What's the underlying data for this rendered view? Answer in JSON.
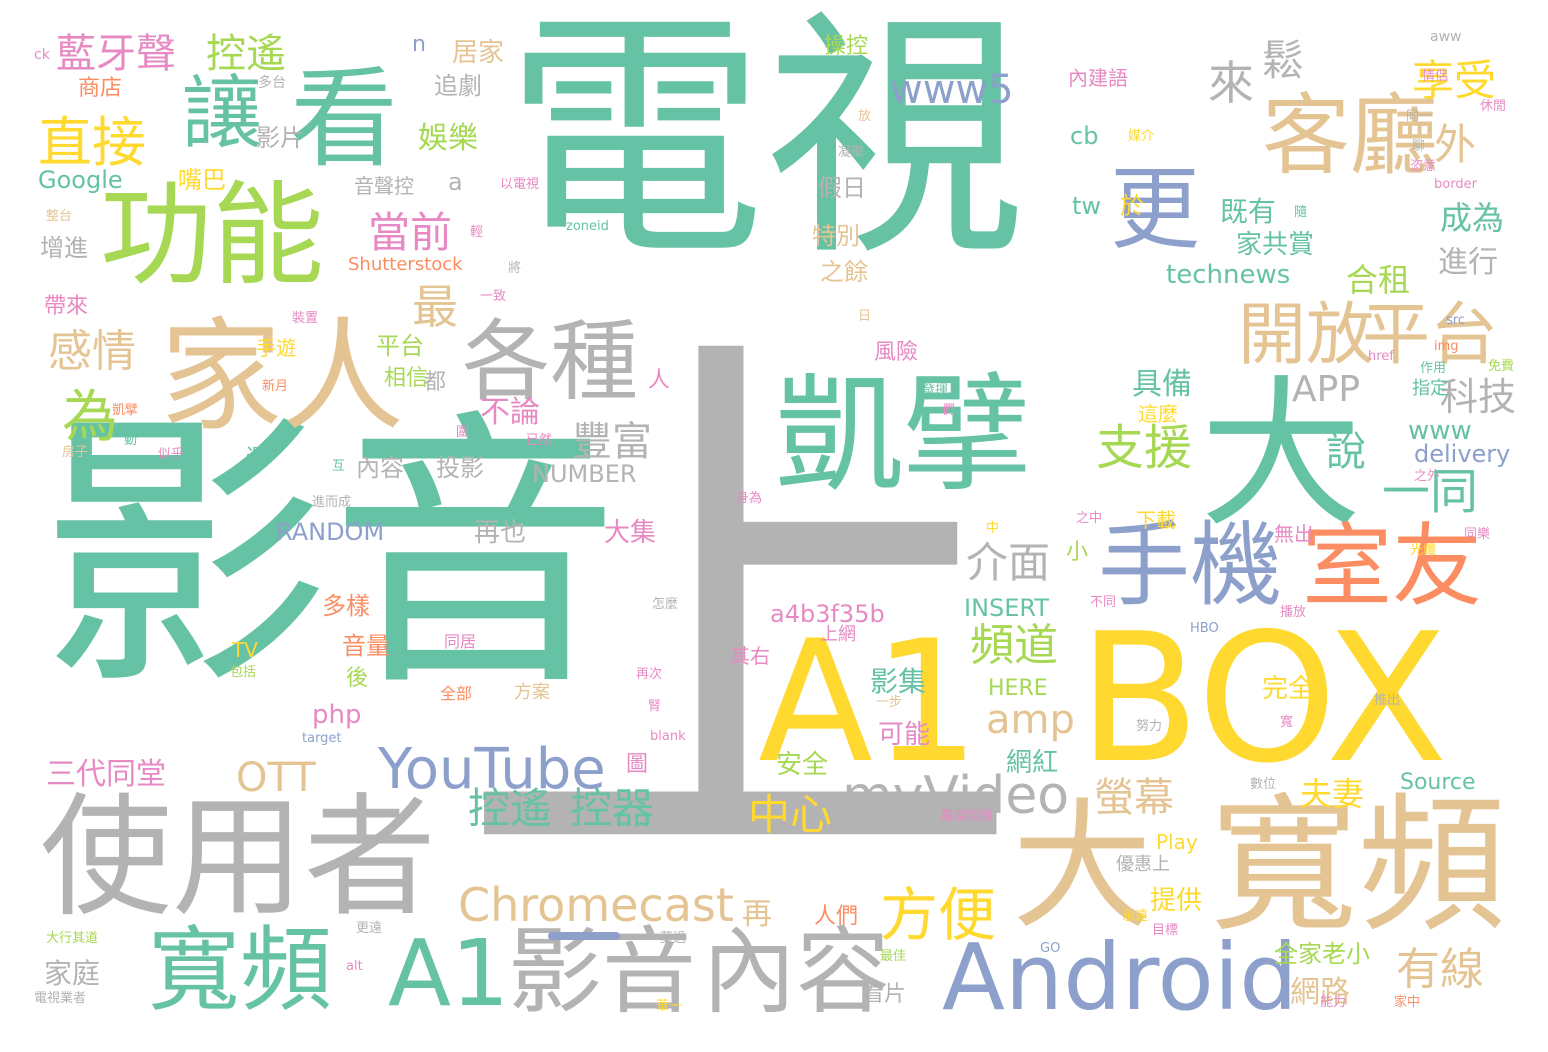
{
  "palette": {
    "teal": "#66c2a5",
    "gold": "#ffd92f",
    "gray": "#b3b3b3",
    "tan": "#e5c494",
    "blue": "#8da0cb",
    "orange": "#fc8d62",
    "pink": "#e78ac3",
    "lime": "#a6d854"
  },
  "words": [
    {
      "text": "電視",
      "color": "teal"
    },
    {
      "text": "影音",
      "color": "teal"
    },
    {
      "text": "上",
      "color": "gray"
    },
    {
      "text": "A1",
      "color": "gold"
    },
    {
      "text": "BOX",
      "color": "gold"
    },
    {
      "text": "凱擘",
      "color": "teal"
    },
    {
      "text": "大",
      "color": "teal"
    },
    {
      "text": "寬頻",
      "color": "tan"
    },
    {
      "text": "大",
      "color": "tan"
    },
    {
      "text": "使用者",
      "color": "gray"
    },
    {
      "text": "寬頻",
      "color": "teal"
    },
    {
      "text": "A1",
      "color": "teal"
    },
    {
      "text": "影音",
      "color": "gray"
    },
    {
      "text": "內容",
      "color": "gray"
    },
    {
      "text": "Android",
      "color": "blue"
    },
    {
      "text": "功能",
      "color": "lime"
    },
    {
      "text": "家人",
      "color": "tan"
    },
    {
      "text": "看",
      "color": "teal"
    },
    {
      "text": "讓",
      "color": "teal"
    },
    {
      "text": "客廳",
      "color": "tan"
    },
    {
      "text": "更",
      "color": "blue"
    },
    {
      "text": "各種",
      "color": "gray"
    },
    {
      "text": "手機",
      "color": "blue"
    },
    {
      "text": "室友",
      "color": "orange"
    },
    {
      "text": "開放",
      "color": "tan"
    },
    {
      "text": "平台",
      "color": "tan"
    },
    {
      "text": "YouTube",
      "color": "blue"
    },
    {
      "text": "Chromecast",
      "color": "tan"
    },
    {
      "text": "方便",
      "color": "gold"
    },
    {
      "text": "myVideo",
      "color": "gray"
    },
    {
      "text": "直接",
      "color": "gold"
    },
    {
      "text": "藍牙聲",
      "color": "pink"
    },
    {
      "text": "控遙",
      "color": "lime"
    },
    {
      "text": "來",
      "color": "gray"
    },
    {
      "text": "鬆",
      "color": "gray"
    },
    {
      "text": "享受",
      "color": "gold"
    },
    {
      "text": "www5",
      "color": "blue"
    },
    {
      "text": "外",
      "color": "tan"
    },
    {
      "text": "最",
      "color": "tan"
    },
    {
      "text": "當前",
      "color": "pink"
    },
    {
      "text": "感情",
      "color": "tan"
    },
    {
      "text": "為",
      "color": "lime"
    },
    {
      "text": "APP",
      "color": "gray"
    },
    {
      "text": "科技",
      "color": "gray"
    },
    {
      "text": "支援",
      "color": "lime"
    },
    {
      "text": "一同",
      "color": "teal"
    },
    {
      "text": "豐富",
      "color": "gray"
    },
    {
      "text": "介面",
      "color": "gray"
    },
    {
      "text": "頻道",
      "color": "lime"
    },
    {
      "text": "amp",
      "color": "tan"
    },
    {
      "text": "OTT",
      "color": "tan"
    },
    {
      "text": "控遙",
      "color": "teal"
    },
    {
      "text": "控器",
      "color": "teal"
    },
    {
      "text": "中心",
      "color": "gold"
    },
    {
      "text": "螢幕",
      "color": "tan"
    },
    {
      "text": "夫妻",
      "color": "gold"
    },
    {
      "text": "有線",
      "color": "tan"
    },
    {
      "text": "網路",
      "color": "tan"
    },
    {
      "text": "三代同堂",
      "color": "pink"
    },
    {
      "text": "家庭",
      "color": "gray"
    },
    {
      "text": "娛樂",
      "color": "lime"
    },
    {
      "text": "Google",
      "color": "teal"
    },
    {
      "text": "technews",
      "color": "teal"
    },
    {
      "text": "合租",
      "color": "lime"
    },
    {
      "text": "成為",
      "color": "teal"
    },
    {
      "text": "既有",
      "color": "teal"
    },
    {
      "text": "家共賞",
      "color": "teal"
    },
    {
      "text": "進行",
      "color": "gray"
    },
    {
      "text": "具備",
      "color": "teal"
    },
    {
      "text": "說",
      "color": "teal"
    },
    {
      "text": "www",
      "color": "teal"
    },
    {
      "text": "delivery",
      "color": "blue"
    },
    {
      "text": "RANDOM",
      "color": "blue"
    },
    {
      "text": "NUMBER",
      "color": "gray"
    },
    {
      "text": "INSERT",
      "color": "teal"
    },
    {
      "text": "a4b3f35b",
      "color": "pink"
    },
    {
      "text": "HERE",
      "color": "lime"
    },
    {
      "text": "php",
      "color": "pink"
    },
    {
      "text": "影集",
      "color": "teal"
    },
    {
      "text": "可能",
      "color": "pink"
    },
    {
      "text": "安全",
      "color": "lime"
    },
    {
      "text": "網紅",
      "color": "teal"
    },
    {
      "text": "完全",
      "color": "gold"
    },
    {
      "text": "Source",
      "color": "teal"
    },
    {
      "text": "Play",
      "color": "gold"
    },
    {
      "text": "提供",
      "color": "gold"
    },
    {
      "text": "全家老小",
      "color": "lime"
    },
    {
      "text": "再",
      "color": "tan"
    },
    {
      "text": "人們",
      "color": "orange"
    },
    {
      "text": "看片",
      "color": "gray"
    },
    {
      "text": "內容",
      "color": "gray"
    },
    {
      "text": "投影",
      "color": "gray"
    },
    {
      "text": "大集",
      "color": "pink"
    },
    {
      "text": "再也",
      "color": "gray"
    },
    {
      "text": "多樣",
      "color": "orange"
    },
    {
      "text": "音量",
      "color": "orange"
    },
    {
      "text": "後",
      "color": "lime"
    },
    {
      "text": "小",
      "color": "lime"
    },
    {
      "text": "不論",
      "color": "pink"
    },
    {
      "text": "圖",
      "color": "pink"
    },
    {
      "text": "居家",
      "color": "tan"
    },
    {
      "text": "追劇",
      "color": "gray"
    },
    {
      "text": "商店",
      "color": "orange"
    },
    {
      "text": "影片",
      "color": "gray"
    },
    {
      "text": "嘴巴",
      "color": "gold"
    },
    {
      "text": "操控",
      "color": "lime"
    },
    {
      "text": "內建語",
      "color": "pink"
    },
    {
      "text": "cb",
      "color": "teal"
    },
    {
      "text": "tw",
      "color": "teal"
    },
    {
      "text": "於",
      "color": "gold"
    },
    {
      "text": "假日",
      "color": "gray"
    },
    {
      "text": "特別",
      "color": "tan"
    },
    {
      "text": "之餘",
      "color": "tan"
    },
    {
      "text": "風險",
      "color": "pink"
    },
    {
      "text": "音聲控",
      "color": "gray"
    },
    {
      "text": "增進",
      "color": "gray"
    },
    {
      "text": "帶來",
      "color": "pink"
    },
    {
      "text": "Shutterstock",
      "color": "orange"
    },
    {
      "text": "手遊",
      "color": "gold"
    },
    {
      "text": "平台",
      "color": "lime"
    },
    {
      "text": "相信",
      "color": "lime"
    },
    {
      "text": "都",
      "color": "gray"
    },
    {
      "text": "還",
      "color": "teal"
    },
    {
      "text": "人",
      "color": "pink"
    },
    {
      "text": "下載",
      "color": "gold"
    },
    {
      "text": "無出",
      "color": "pink"
    },
    {
      "text": "指定",
      "color": "teal"
    },
    {
      "text": "這麼",
      "color": "gold"
    },
    {
      "text": "TV",
      "color": "gold"
    },
    {
      "text": "其右",
      "color": "pink"
    },
    {
      "text": "上網",
      "color": "pink"
    },
    {
      "text": "優惠上",
      "color": "gray"
    },
    {
      "text": "n",
      "color": "blue"
    },
    {
      "text": "a",
      "color": "gray"
    },
    {
      "text": "方案",
      "color": "tan"
    },
    {
      "text": "全部",
      "color": "orange"
    },
    {
      "text": "同居",
      "color": "pink"
    },
    {
      "text": "多台",
      "color": "gray"
    },
    {
      "text": "ck",
      "color": "pink"
    },
    {
      "text": "aww",
      "color": "gray"
    },
    {
      "text": "情侶",
      "color": "pink"
    },
    {
      "text": "休閒",
      "color": "pink"
    },
    {
      "text": "同一",
      "color": "gray"
    },
    {
      "text": "恣意",
      "color": "pink"
    },
    {
      "text": "媒介",
      "color": "gold"
    },
    {
      "text": "聊",
      "color": "gray"
    },
    {
      "text": "放",
      "color": "tan"
    },
    {
      "text": "凝聚",
      "color": "gray"
    },
    {
      "text": "以電視",
      "color": "pink"
    },
    {
      "text": "整台",
      "color": "tan"
    },
    {
      "text": "輕",
      "color": "pink"
    },
    {
      "text": "zoneid",
      "color": "teal"
    },
    {
      "text": "border",
      "color": "pink"
    },
    {
      "text": "隨",
      "color": "teal"
    },
    {
      "text": "將",
      "color": "gray"
    },
    {
      "text": "一致",
      "color": "pink"
    },
    {
      "text": "裝置",
      "color": "pink"
    },
    {
      "text": "日",
      "color": "tan"
    },
    {
      "text": "src",
      "color": "blue"
    },
    {
      "text": "新月",
      "color": "orange"
    },
    {
      "text": "img",
      "color": "orange"
    },
    {
      "text": "免費",
      "color": "lime"
    },
    {
      "text": "href",
      "color": "pink"
    },
    {
      "text": "作用",
      "color": "teal"
    },
    {
      "text": "發揮",
      "color": "teal"
    },
    {
      "text": "們",
      "color": "pink"
    },
    {
      "text": "凱擘",
      "color": "orange"
    },
    {
      "text": "動",
      "color": "teal"
    },
    {
      "text": "房子",
      "color": "tan"
    },
    {
      "text": "似乎",
      "color": "pink"
    },
    {
      "text": "互",
      "color": "teal"
    },
    {
      "text": "圍",
      "color": "pink"
    },
    {
      "text": "已然",
      "color": "pink"
    },
    {
      "text": "進而成",
      "color": "gray"
    },
    {
      "text": "身為",
      "color": "pink"
    },
    {
      "text": "之外",
      "color": "pink"
    },
    {
      "text": "光纖",
      "color": "gold"
    },
    {
      "text": "之中",
      "color": "pink"
    },
    {
      "text": "同樂",
      "color": "pink"
    },
    {
      "text": "中",
      "color": "gold"
    },
    {
      "text": "不同",
      "color": "pink"
    },
    {
      "text": "怎麼",
      "color": "gray"
    },
    {
      "text": "播放",
      "color": "pink"
    },
    {
      "text": "HBO",
      "color": "blue"
    },
    {
      "text": "包括",
      "color": "lime"
    },
    {
      "text": "再次",
      "color": "pink"
    },
    {
      "text": "推出",
      "color": "gray"
    },
    {
      "text": "腎",
      "color": "pink"
    },
    {
      "text": "一步",
      "color": "tan"
    },
    {
      "text": "寬",
      "color": "pink"
    },
    {
      "text": "努力",
      "color": "gray"
    },
    {
      "text": "target",
      "color": "blue"
    },
    {
      "text": "blank",
      "color": "pink"
    },
    {
      "text": "數位",
      "color": "gray"
    },
    {
      "text": "電視龍頭",
      "color": "pink"
    },
    {
      "text": "永遠",
      "color": "gold"
    },
    {
      "text": "大行其道",
      "color": "lime"
    },
    {
      "text": "更遠",
      "color": "gray"
    },
    {
      "text": "莫過",
      "color": "gray"
    },
    {
      "text": "目標",
      "color": "pink"
    },
    {
      "text": "GO",
      "color": "blue"
    },
    {
      "text": "alt",
      "color": "pink"
    },
    {
      "text": "最佳",
      "color": "lime"
    },
    {
      "text": "電視業者",
      "color": "gray"
    },
    {
      "text": "華一",
      "color": "gold"
    },
    {
      "text": "能力",
      "color": "pink"
    },
    {
      "text": "家中",
      "color": "orange"
    }
  ]
}
